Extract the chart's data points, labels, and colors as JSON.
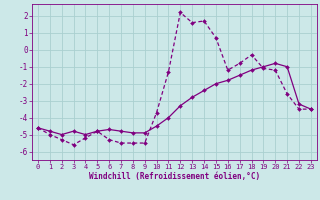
{
  "xlabel": "Windchill (Refroidissement éolien,°C)",
  "line1_x": [
    0,
    1,
    2,
    3,
    4,
    5,
    6,
    7,
    8,
    9,
    10,
    11,
    12,
    13,
    14,
    15,
    16,
    17,
    18,
    19,
    20,
    21,
    22,
    23
  ],
  "line1_y": [
    -4.6,
    -5.0,
    -5.3,
    -5.6,
    -5.2,
    -4.8,
    -5.3,
    -5.5,
    -5.5,
    -5.5,
    -3.7,
    -1.3,
    2.2,
    1.6,
    1.7,
    0.7,
    -1.2,
    -0.8,
    -0.3,
    -1.1,
    -1.2,
    -2.6,
    -3.5,
    -3.5
  ],
  "line2_x": [
    0,
    1,
    2,
    3,
    4,
    5,
    6,
    7,
    8,
    9,
    10,
    11,
    12,
    13,
    14,
    15,
    16,
    17,
    18,
    19,
    20,
    21,
    22,
    23
  ],
  "line2_y": [
    -4.6,
    -4.8,
    -5.0,
    -4.8,
    -5.0,
    -4.8,
    -4.7,
    -4.8,
    -4.9,
    -4.9,
    -4.5,
    -4.0,
    -3.3,
    -2.8,
    -2.4,
    -2.0,
    -1.8,
    -1.5,
    -1.2,
    -1.0,
    -0.8,
    -1.0,
    -3.2,
    -3.5
  ],
  "line_color": "#800080",
  "bg_color": "#cce8e8",
  "grid_color": "#aad0d0",
  "xlim": [
    -0.5,
    23.5
  ],
  "ylim": [
    -6.5,
    2.7
  ],
  "yticks": [
    -6,
    -5,
    -4,
    -3,
    -2,
    -1,
    0,
    1,
    2
  ],
  "xticks": [
    0,
    1,
    2,
    3,
    4,
    5,
    6,
    7,
    8,
    9,
    10,
    11,
    12,
    13,
    14,
    15,
    16,
    17,
    18,
    19,
    20,
    21,
    22,
    23
  ],
  "marker": "D",
  "markersize": 2.0,
  "linewidth": 0.9,
  "tick_fontsize": 5.0,
  "xlabel_fontsize": 5.5
}
